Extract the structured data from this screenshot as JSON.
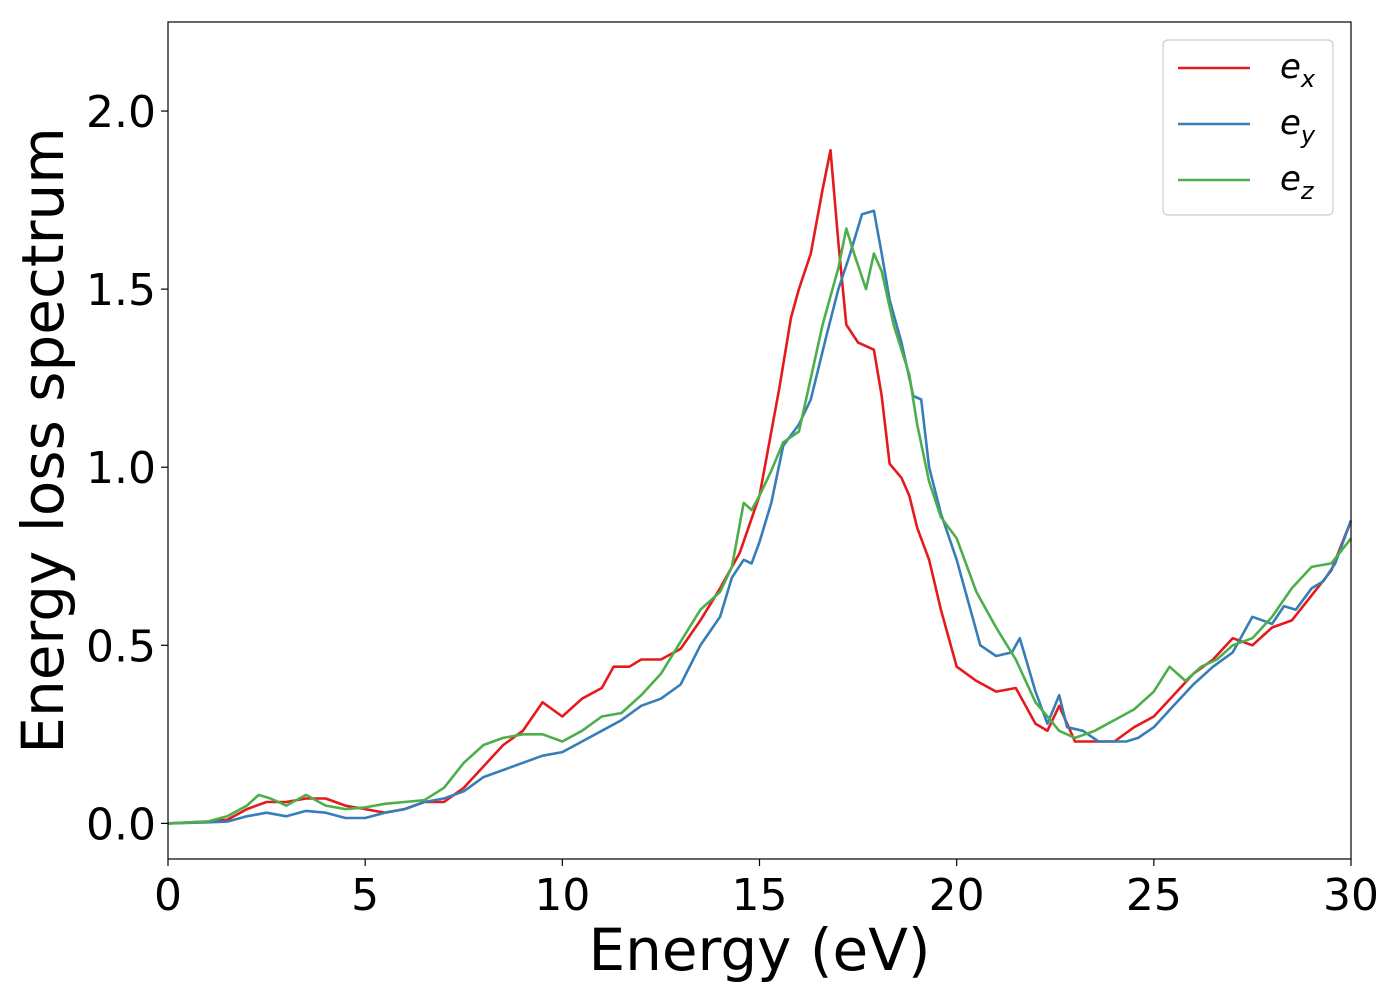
{
  "chart_data": {
    "type": "line",
    "title": "",
    "xlabel": "Energy (eV)",
    "ylabel": "Energy loss spectrum",
    "xlim": [
      0,
      30
    ],
    "ylim": [
      -0.1,
      2.25
    ],
    "xticks": [
      0,
      5,
      10,
      15,
      20,
      25,
      30
    ],
    "xtick_labels": [
      "0",
      "5",
      "10",
      "15",
      "20",
      "25",
      "30"
    ],
    "yticks": [
      0.0,
      0.5,
      1.0,
      1.5,
      2.0
    ],
    "ytick_labels": [
      "0.0",
      "0.5",
      "1.0",
      "1.5",
      "2.0"
    ],
    "grid": false,
    "legend_position": "top-right",
    "series": [
      {
        "name": "e_x",
        "legend_base": "e",
        "legend_sub": "x",
        "color": "#e41a1c",
        "points": [
          [
            0,
            0
          ],
          [
            1,
            0.005
          ],
          [
            1.5,
            0.01
          ],
          [
            2,
            0.04
          ],
          [
            2.5,
            0.06
          ],
          [
            3,
            0.06
          ],
          [
            3.5,
            0.07
          ],
          [
            4,
            0.07
          ],
          [
            4.5,
            0.05
          ],
          [
            5,
            0.04
          ],
          [
            5.5,
            0.03
          ],
          [
            6,
            0.04
          ],
          [
            6.5,
            0.06
          ],
          [
            7,
            0.06
          ],
          [
            7.5,
            0.1
          ],
          [
            8,
            0.16
          ],
          [
            8.5,
            0.22
          ],
          [
            9,
            0.26
          ],
          [
            9.5,
            0.34
          ],
          [
            10,
            0.3
          ],
          [
            10.5,
            0.35
          ],
          [
            11,
            0.38
          ],
          [
            11.3,
            0.44
          ],
          [
            11.7,
            0.44
          ],
          [
            12,
            0.46
          ],
          [
            12.5,
            0.46
          ],
          [
            13,
            0.49
          ],
          [
            13.5,
            0.57
          ],
          [
            14,
            0.66
          ],
          [
            14.5,
            0.76
          ],
          [
            15,
            0.92
          ],
          [
            15.5,
            1.22
          ],
          [
            15.8,
            1.42
          ],
          [
            16,
            1.5
          ],
          [
            16.3,
            1.6
          ],
          [
            16.6,
            1.78
          ],
          [
            16.8,
            1.89
          ],
          [
            17,
            1.63
          ],
          [
            17.2,
            1.4
          ],
          [
            17.5,
            1.35
          ],
          [
            17.9,
            1.33
          ],
          [
            18.1,
            1.2
          ],
          [
            18.3,
            1.01
          ],
          [
            18.6,
            0.97
          ],
          [
            18.8,
            0.92
          ],
          [
            19,
            0.83
          ],
          [
            19.3,
            0.74
          ],
          [
            19.6,
            0.6
          ],
          [
            20,
            0.44
          ],
          [
            20.5,
            0.4
          ],
          [
            21,
            0.37
          ],
          [
            21.5,
            0.38
          ],
          [
            22,
            0.28
          ],
          [
            22.3,
            0.26
          ],
          [
            22.6,
            0.33
          ],
          [
            22.8,
            0.28
          ],
          [
            23,
            0.23
          ],
          [
            23.5,
            0.23
          ],
          [
            24,
            0.23
          ],
          [
            24.5,
            0.27
          ],
          [
            25,
            0.3
          ],
          [
            25.5,
            0.36
          ],
          [
            26,
            0.42
          ],
          [
            26.5,
            0.46
          ],
          [
            27,
            0.52
          ],
          [
            27.5,
            0.5
          ],
          [
            28,
            0.55
          ],
          [
            28.5,
            0.57
          ],
          [
            29,
            0.64
          ],
          [
            29.5,
            0.71
          ],
          [
            30,
            0.85
          ]
        ]
      },
      {
        "name": "e_y",
        "legend_base": "e",
        "legend_sub": "y",
        "color": "#377eb8",
        "points": [
          [
            0,
            0
          ],
          [
            1,
            0.003
          ],
          [
            1.5,
            0.005
          ],
          [
            2,
            0.02
          ],
          [
            2.5,
            0.03
          ],
          [
            3,
            0.02
          ],
          [
            3.5,
            0.035
          ],
          [
            4,
            0.03
          ],
          [
            4.5,
            0.015
          ],
          [
            5,
            0.015
          ],
          [
            5.5,
            0.03
          ],
          [
            6,
            0.04
          ],
          [
            6.5,
            0.06
          ],
          [
            7,
            0.07
          ],
          [
            7.5,
            0.09
          ],
          [
            8,
            0.13
          ],
          [
            8.5,
            0.15
          ],
          [
            9,
            0.17
          ],
          [
            9.5,
            0.19
          ],
          [
            10,
            0.2
          ],
          [
            10.5,
            0.23
          ],
          [
            11,
            0.26
          ],
          [
            11.5,
            0.29
          ],
          [
            12,
            0.33
          ],
          [
            12.5,
            0.35
          ],
          [
            13,
            0.39
          ],
          [
            13.5,
            0.5
          ],
          [
            14,
            0.58
          ],
          [
            14.3,
            0.69
          ],
          [
            14.6,
            0.74
          ],
          [
            14.8,
            0.73
          ],
          [
            15,
            0.79
          ],
          [
            15.3,
            0.9
          ],
          [
            15.6,
            1.06
          ],
          [
            16,
            1.12
          ],
          [
            16.3,
            1.19
          ],
          [
            16.7,
            1.37
          ],
          [
            17,
            1.5
          ],
          [
            17.3,
            1.6
          ],
          [
            17.6,
            1.71
          ],
          [
            17.9,
            1.72
          ],
          [
            18.1,
            1.6
          ],
          [
            18.3,
            1.47
          ],
          [
            18.6,
            1.35
          ],
          [
            18.9,
            1.2
          ],
          [
            19.1,
            1.19
          ],
          [
            19.3,
            1.0
          ],
          [
            19.6,
            0.87
          ],
          [
            20,
            0.74
          ],
          [
            20.3,
            0.62
          ],
          [
            20.6,
            0.5
          ],
          [
            21,
            0.47
          ],
          [
            21.4,
            0.48
          ],
          [
            21.6,
            0.52
          ],
          [
            22,
            0.37
          ],
          [
            22.3,
            0.28
          ],
          [
            22.6,
            0.36
          ],
          [
            22.8,
            0.27
          ],
          [
            23.2,
            0.26
          ],
          [
            23.6,
            0.23
          ],
          [
            24,
            0.23
          ],
          [
            24.3,
            0.23
          ],
          [
            24.6,
            0.24
          ],
          [
            25,
            0.27
          ],
          [
            25.5,
            0.33
          ],
          [
            26,
            0.39
          ],
          [
            26.5,
            0.44
          ],
          [
            27,
            0.48
          ],
          [
            27.5,
            0.58
          ],
          [
            28,
            0.56
          ],
          [
            28.3,
            0.61
          ],
          [
            28.6,
            0.6
          ],
          [
            29,
            0.66
          ],
          [
            29.3,
            0.68
          ],
          [
            29.6,
            0.73
          ],
          [
            30,
            0.85
          ]
        ]
      },
      {
        "name": "e_z",
        "legend_base": "e",
        "legend_sub": "z",
        "color": "#4daf4a",
        "points": [
          [
            0,
            0
          ],
          [
            1,
            0.005
          ],
          [
            1.5,
            0.02
          ],
          [
            2,
            0.05
          ],
          [
            2.3,
            0.08
          ],
          [
            2.6,
            0.07
          ],
          [
            3,
            0.05
          ],
          [
            3.5,
            0.08
          ],
          [
            4,
            0.05
          ],
          [
            4.5,
            0.04
          ],
          [
            5,
            0.045
          ],
          [
            5.5,
            0.055
          ],
          [
            6,
            0.06
          ],
          [
            6.5,
            0.065
          ],
          [
            7,
            0.1
          ],
          [
            7.5,
            0.17
          ],
          [
            8,
            0.22
          ],
          [
            8.5,
            0.24
          ],
          [
            9,
            0.25
          ],
          [
            9.5,
            0.25
          ],
          [
            10,
            0.23
          ],
          [
            10.5,
            0.26
          ],
          [
            11,
            0.3
          ],
          [
            11.5,
            0.31
          ],
          [
            12,
            0.36
          ],
          [
            12.5,
            0.42
          ],
          [
            13,
            0.51
          ],
          [
            13.5,
            0.6
          ],
          [
            14,
            0.65
          ],
          [
            14.3,
            0.72
          ],
          [
            14.6,
            0.9
          ],
          [
            14.8,
            0.88
          ],
          [
            15,
            0.92
          ],
          [
            15.3,
            0.99
          ],
          [
            15.6,
            1.07
          ],
          [
            16,
            1.1
          ],
          [
            16.3,
            1.25
          ],
          [
            16.6,
            1.4
          ],
          [
            17,
            1.56
          ],
          [
            17.2,
            1.67
          ],
          [
            17.4,
            1.6
          ],
          [
            17.7,
            1.5
          ],
          [
            17.9,
            1.6
          ],
          [
            18.1,
            1.55
          ],
          [
            18.4,
            1.4
          ],
          [
            18.8,
            1.26
          ],
          [
            19,
            1.12
          ],
          [
            19.3,
            0.96
          ],
          [
            19.6,
            0.86
          ],
          [
            20,
            0.8
          ],
          [
            20.5,
            0.65
          ],
          [
            21,
            0.55
          ],
          [
            21.5,
            0.46
          ],
          [
            22,
            0.34
          ],
          [
            22.3,
            0.3
          ],
          [
            22.6,
            0.26
          ],
          [
            23,
            0.24
          ],
          [
            23.5,
            0.26
          ],
          [
            24,
            0.29
          ],
          [
            24.5,
            0.32
          ],
          [
            25,
            0.37
          ],
          [
            25.4,
            0.44
          ],
          [
            25.8,
            0.4
          ],
          [
            26.2,
            0.44
          ],
          [
            26.6,
            0.46
          ],
          [
            27,
            0.5
          ],
          [
            27.5,
            0.52
          ],
          [
            28,
            0.58
          ],
          [
            28.5,
            0.66
          ],
          [
            29,
            0.72
          ],
          [
            29.5,
            0.73
          ],
          [
            30,
            0.8
          ]
        ]
      }
    ]
  }
}
